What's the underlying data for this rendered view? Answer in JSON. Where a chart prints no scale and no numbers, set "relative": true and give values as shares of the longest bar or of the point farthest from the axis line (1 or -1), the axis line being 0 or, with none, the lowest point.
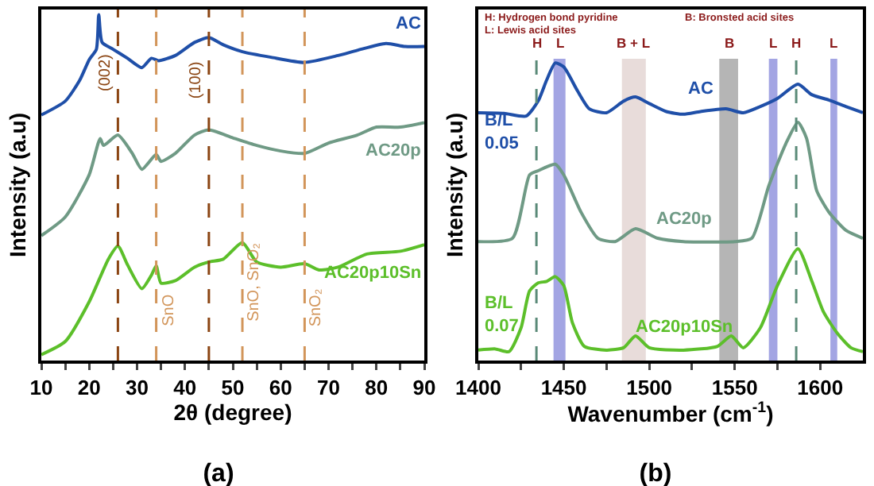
{
  "chart_data": [
    {
      "type": "line",
      "title": "(a)",
      "xlabel": "2θ (degree)",
      "ylabel": "Intensity (a.u)",
      "relative": true,
      "tick_labels": "x",
      "xlim": [
        10,
        90
      ],
      "xticks": [
        10,
        {
          "value": 15,
          "label": null
        },
        20,
        {
          "value": 25,
          "label": null
        },
        30,
        {
          "value": 35,
          "label": null
        },
        40,
        {
          "value": 45,
          "label": null
        },
        50,
        {
          "value": 55,
          "label": null
        },
        60,
        {
          "value": 65,
          "label": null
        },
        70,
        {
          "value": 75,
          "label": null
        },
        80,
        {
          "value": 85,
          "label": null
        },
        90
      ],
      "series": [
        {
          "name": "AC",
          "color": "#1f4fa8",
          "x": [
            10,
            15,
            18,
            20,
            21.5,
            22,
            22.7,
            25,
            28,
            31,
            33,
            34.5,
            38,
            42,
            45,
            48,
            52,
            58,
            65,
            72,
            76,
            82,
            86,
            90
          ],
          "values": [
            0.71,
            0.75,
            0.81,
            0.87,
            0.9,
            1.0,
            0.92,
            0.9,
            0.874,
            0.847,
            0.874,
            0.867,
            0.882,
            0.92,
            0.934,
            0.913,
            0.893,
            0.877,
            0.862,
            0.882,
            0.897,
            0.917,
            0.908,
            0.908
          ]
        },
        {
          "name": "AC20p",
          "color": "#6f9a85",
          "x": [
            10,
            15,
            20,
            22.3,
            23,
            26,
            29,
            31,
            34,
            35,
            38,
            42,
            45,
            50,
            55,
            60,
            65,
            70,
            76,
            80,
            85,
            90
          ],
          "values": [
            0.361,
            0.415,
            0.537,
            0.642,
            0.622,
            0.652,
            0.599,
            0.553,
            0.596,
            0.576,
            0.599,
            0.652,
            0.667,
            0.644,
            0.622,
            0.606,
            0.599,
            0.629,
            0.652,
            0.675,
            0.675,
            0.688
          ]
        },
        {
          "name": "AC20p10Sn",
          "color": "#5cbf2a",
          "x": [
            10,
            15,
            20,
            24,
            26,
            28,
            31,
            33,
            34,
            35,
            38,
            42,
            45,
            48,
            52,
            55,
            60,
            65,
            68,
            72,
            78,
            85,
            90
          ],
          "values": [
            0.017,
            0.055,
            0.17,
            0.293,
            0.331,
            0.277,
            0.208,
            0.247,
            0.274,
            0.224,
            0.231,
            0.27,
            0.285,
            0.293,
            0.341,
            0.285,
            0.27,
            0.28,
            0.262,
            0.27,
            0.308,
            0.316,
            0.335
          ]
        }
      ],
      "ref_lines": [
        {
          "axis": "x",
          "value": 26,
          "color": "#8b4513",
          "line_style": "dashed"
        },
        {
          "axis": "x",
          "value": 34,
          "label": "SnO",
          "color": "#d2955a",
          "line_style": "dashed"
        },
        {
          "axis": "x",
          "value": 45,
          "color": "#8b4513",
          "line_style": "dashed"
        },
        {
          "axis": "x",
          "value": 52,
          "label": "SnO, SnO₂",
          "color": "#d2955a",
          "line_style": "dashed"
        },
        {
          "axis": "x",
          "value": 65,
          "label": "SnO₂",
          "color": "#d2955a",
          "line_style": "dashed"
        }
      ],
      "annotations": [
        {
          "text": "(002)",
          "x": 26,
          "y": 0.83
        },
        {
          "text": "(100)",
          "x": 45,
          "y": 0.81
        }
      ]
    },
    {
      "type": "line",
      "title": "(b)",
      "xlabel": "Wavenumber (cm$^{-1}$)",
      "ylabel": "Intensity (a.u)",
      "relative": true,
      "tick_labels": "x",
      "xlim": [
        1400,
        1625
      ],
      "xticks": [
        1400,
        {
          "value": 1425,
          "label": null
        },
        1450,
        {
          "value": 1475,
          "label": null
        },
        1500,
        {
          "value": 1525,
          "label": null
        },
        1550,
        {
          "value": 1575,
          "label": null
        },
        1600
      ],
      "series": [
        {
          "name": "AC",
          "color": "#1f4fa8",
          "x": [
            1400,
            1415,
            1428,
            1435,
            1440,
            1445,
            1450,
            1458,
            1465,
            1475,
            1485,
            1492,
            1500,
            1510,
            1520,
            1530,
            1545,
            1555,
            1565,
            1575,
            1587,
            1595,
            1605,
            1615,
            1625
          ],
          "values": [
            0.833,
            0.831,
            0.822,
            0.872,
            0.943,
            1.0,
            0.987,
            0.907,
            0.846,
            0.833,
            0.872,
            0.886,
            0.864,
            0.837,
            0.828,
            0.837,
            0.846,
            0.833,
            0.854,
            0.881,
            0.929,
            0.894,
            0.876,
            0.854,
            0.833
          ]
        },
        {
          "name": "AC20p",
          "color": "#6f9a85",
          "x": [
            1400,
            1420,
            1430,
            1435,
            1445,
            1450,
            1460,
            1470,
            1480,
            1492,
            1505,
            1520,
            1550,
            1560,
            1570,
            1580,
            1587,
            1592,
            1598,
            1605,
            1615,
            1625
          ],
          "values": [
            0.4,
            0.411,
            0.624,
            0.638,
            0.66,
            0.624,
            0.5,
            0.411,
            0.4,
            0.443,
            0.411,
            0.4,
            0.4,
            0.411,
            0.588,
            0.73,
            0.801,
            0.748,
            0.571,
            0.5,
            0.438,
            0.411
          ]
        },
        {
          "name": "AC20p10Sn",
          "color": "#5cbf2a",
          "x": [
            1400,
            1410,
            1418,
            1425,
            1430,
            1435,
            1440,
            1445,
            1450,
            1455,
            1462,
            1475,
            1485,
            1492,
            1500,
            1520,
            1540,
            1548,
            1555,
            1565,
            1575,
            1587,
            1595,
            1602,
            1610,
            1618,
            1625
          ],
          "values": [
            0.035,
            0.039,
            0.03,
            0.11,
            0.234,
            0.261,
            0.266,
            0.282,
            0.252,
            0.128,
            0.048,
            0.035,
            0.043,
            0.083,
            0.043,
            0.035,
            0.048,
            0.083,
            0.043,
            0.11,
            0.252,
            0.376,
            0.269,
            0.163,
            0.092,
            0.043,
            0.03
          ]
        }
      ],
      "ref_lines": [
        {
          "axis": "x",
          "value": 1434,
          "label": "H",
          "color": "#5a8a78",
          "line_style": "dashed"
        },
        {
          "axis": "x",
          "value": 1586,
          "label": "H",
          "color": "#5a8a78",
          "line_style": "dashed"
        }
      ],
      "bands": [
        {
          "axis": "x",
          "from": 1444,
          "to": 1451,
          "label": "L",
          "color": "#a3a5e3"
        },
        {
          "axis": "x",
          "from": 1484,
          "to": 1498,
          "label": "B + L",
          "color": "#e8dcda"
        },
        {
          "axis": "x",
          "from": 1541,
          "to": 1552,
          "label": "B",
          "color": "#b5b5b5"
        },
        {
          "axis": "x",
          "from": 1570,
          "to": 1575,
          "label": "L",
          "color": "#a3a5e3"
        },
        {
          "axis": "x",
          "from": 1606,
          "to": 1610,
          "label": "L",
          "color": "#a3a5e3"
        }
      ],
      "annotations": [
        "H: Hydrogen bond pyridine",
        "L: Lewis acid sites",
        "B: Bronsted acid sites",
        "B/L\n0.05",
        "B/L\n0.07"
      ]
    }
  ]
}
